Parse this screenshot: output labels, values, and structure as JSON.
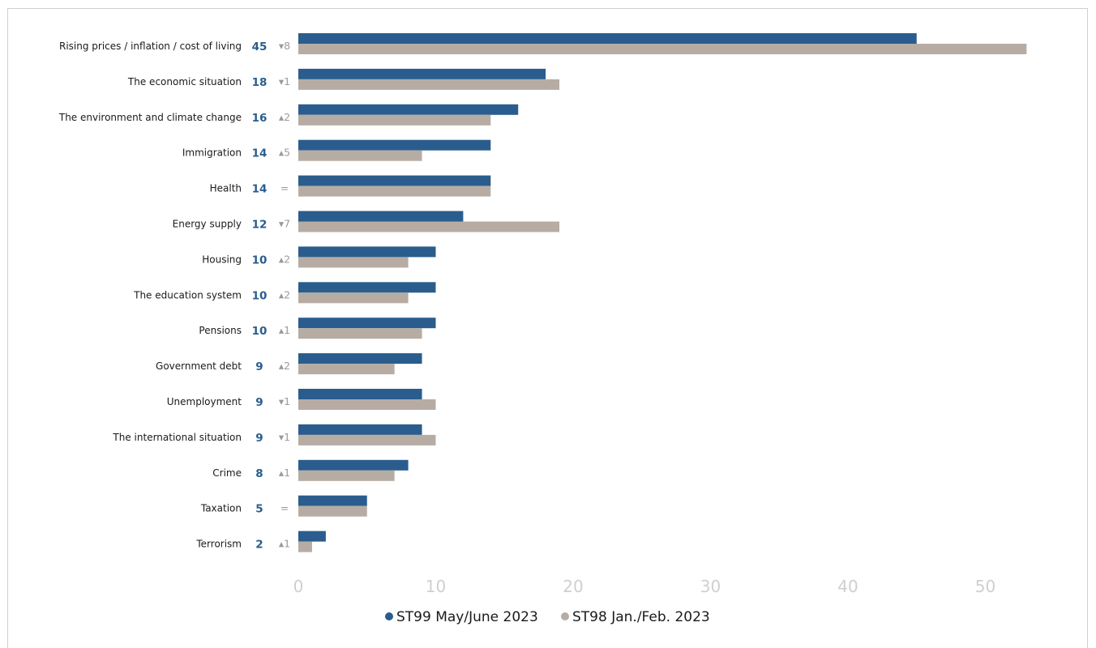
{
  "colors": {
    "current": "#2a5d8d",
    "previous": "#b7aca4",
    "change": "#9a9a9a",
    "ticks": "#cfcfcf"
  },
  "chart_data": {
    "type": "bar",
    "orientation": "horizontal",
    "categories": [
      "Rising prices / inflation / cost of living",
      "The economic situation",
      "The environment and climate change",
      "Immigration",
      "Health",
      "Energy supply",
      "Housing",
      "The education system",
      "Pensions",
      "Government debt",
      "Unemployment",
      "The international situation",
      "Crime",
      "Taxation",
      "Terrorism"
    ],
    "value_labels": [
      "45",
      "18",
      "16",
      "14",
      "14",
      "12",
      "10",
      "10",
      "10",
      "9",
      "9",
      "9",
      "8",
      "5",
      "2"
    ],
    "change_labels": [
      "▾8",
      "▾1",
      "▴2",
      "▴5",
      "=",
      "▾7",
      "▴2",
      "▴2",
      "▴1",
      "▴2",
      "▾1",
      "▾1",
      "▴1",
      "=",
      "▴1"
    ],
    "series": [
      {
        "name": "ST99 May/June 2023",
        "values": [
          45,
          18,
          16,
          14,
          14,
          12,
          10,
          10,
          10,
          9,
          9,
          9,
          8,
          5,
          2
        ]
      },
      {
        "name": "ST98 Jan./Feb. 2023",
        "values": [
          53,
          19,
          14,
          9,
          14,
          19,
          8,
          8,
          9,
          7,
          10,
          10,
          7,
          5,
          1
        ]
      }
    ],
    "x_ticks": [
      "0",
      "10",
      "20",
      "30",
      "40",
      "50"
    ],
    "xlim": [
      0,
      56
    ],
    "grid": false,
    "legend_position": "bottom",
    "title": "",
    "xlabel": "",
    "ylabel": ""
  }
}
